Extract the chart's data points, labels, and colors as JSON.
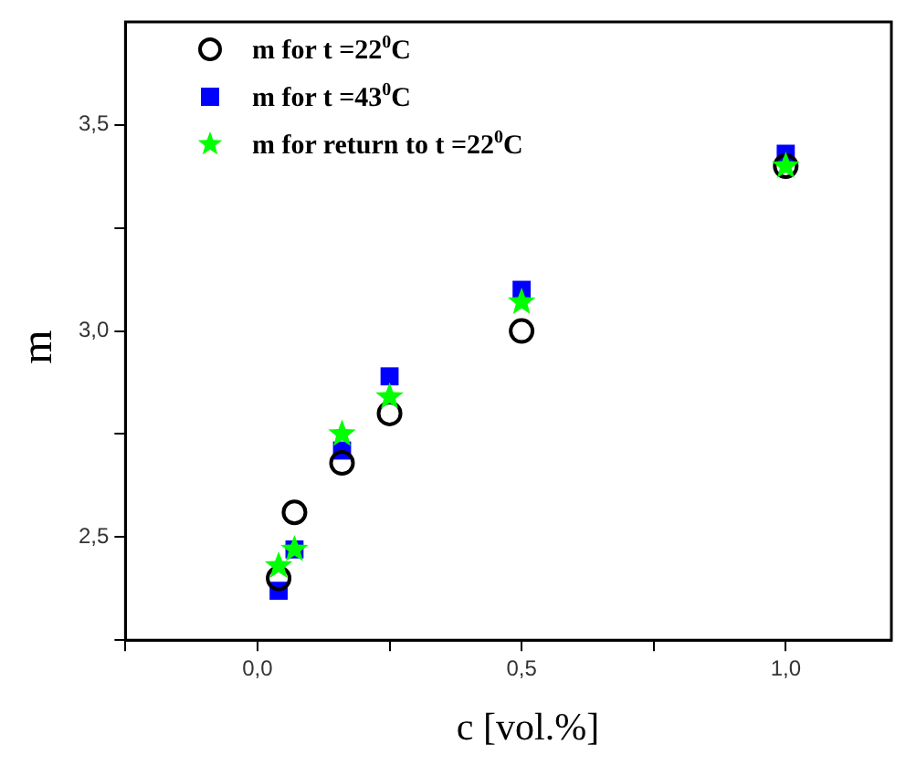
{
  "chart_data": {
    "type": "scatter",
    "xlabel": "c [vol.%]",
    "ylabel": "m",
    "xlim": [
      -0.25,
      1.2
    ],
    "ylim": [
      2.25,
      3.75
    ],
    "xticks": [
      {
        "value": -0.25,
        "label": null
      },
      {
        "value": 0,
        "label": "0,0"
      },
      {
        "value": 0.25,
        "label": null
      },
      {
        "value": 0.5,
        "label": "0,5"
      },
      {
        "value": 0.75,
        "label": null
      },
      {
        "value": 1,
        "label": "1,0"
      }
    ],
    "yticks": [
      {
        "value": 2.25,
        "label": null
      },
      {
        "value": 2.5,
        "label": "2,5"
      },
      {
        "value": 2.75,
        "label": null
      },
      {
        "value": 3,
        "label": "3,0"
      },
      {
        "value": 3.25,
        "label": null
      },
      {
        "value": 3.5,
        "label": "3,5"
      }
    ],
    "x": [
      0.04,
      0.07,
      0.16,
      0.25,
      0.5,
      1.0
    ],
    "legend": "top left",
    "grid": false,
    "series": [
      {
        "name": "m for t =22$^{0}$C",
        "color": "#000000",
        "marker": "circle",
        "values": [
          2.4,
          2.56,
          2.68,
          2.8,
          3.0,
          3.4
        ]
      },
      {
        "name": "m for t =43$^{0}$C",
        "color": "#0000ff",
        "marker": "square",
        "values": [
          2.37,
          2.47,
          2.71,
          2.89,
          3.1,
          3.43
        ]
      },
      {
        "name": "m for return to  t =22$^{0}$C",
        "color": "#00ff00",
        "marker": "star",
        "values": [
          2.43,
          2.47,
          2.75,
          2.84,
          3.07,
          3.4
        ]
      }
    ]
  }
}
